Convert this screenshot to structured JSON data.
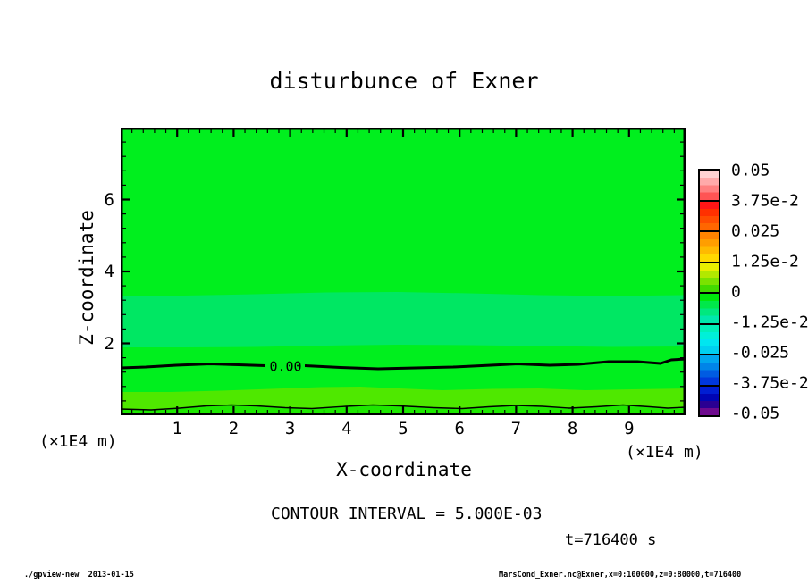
{
  "title": "disturbunce of Exner",
  "axes": {
    "x": {
      "label": "X-coordinate",
      "unit": "(×1E4 m)",
      "tick_labels": [
        "1",
        "2",
        "3",
        "4",
        "5",
        "6",
        "7",
        "8",
        "9"
      ],
      "tick_values": [
        1,
        2,
        3,
        4,
        5,
        6,
        7,
        8,
        9
      ],
      "range": [
        0,
        10
      ],
      "minor_step": 0.2
    },
    "y": {
      "label": "Z-coordinate",
      "unit": "(×1E4 m)",
      "tick_labels": [
        "2",
        "4",
        "6"
      ],
      "tick_values": [
        2,
        4,
        6
      ],
      "range": [
        0,
        8
      ],
      "minor_step": 0.4
    }
  },
  "plot": {
    "contour_label": "0.00",
    "band_colors": {
      "main_green": "#00ef1e",
      "seafoam_band": "#00e763",
      "yellow_green_band": "#4fe800",
      "bottom_strip": "#1ee800"
    },
    "frame_color": "#000000"
  },
  "colorbar": {
    "boundary_labels": [
      "0.05",
      "3.75e-2",
      "0.025",
      "1.25e-2",
      "0",
      "-1.25e-2",
      "-0.025",
      "-3.75e-2",
      "-0.05"
    ],
    "segments": [
      {
        "name": "pink",
        "colors": [
          "#ffd2d2",
          "#ffaaaa",
          "#ff8080",
          "#ff5454"
        ]
      },
      {
        "name": "red",
        "colors": [
          "#ff1616",
          "#ff3000",
          "#ff4c00",
          "#ff6600"
        ]
      },
      {
        "name": "orange",
        "colors": [
          "#ff8400",
          "#ff9e00",
          "#ffba00",
          "#ffd800"
        ]
      },
      {
        "name": "yellow-green",
        "colors": [
          "#e9ee00",
          "#b2e800",
          "#7ae200",
          "#42da00"
        ]
      },
      {
        "name": "green",
        "colors": [
          "#00e80c",
          "#00e84a",
          "#00e87e",
          "#00e8ac"
        ]
      },
      {
        "name": "cyan",
        "colors": [
          "#00f0b8",
          "#00f0d8",
          "#00e6f0",
          "#00d0f0"
        ]
      },
      {
        "name": "blue",
        "colors": [
          "#00a6ee",
          "#0084e8",
          "#005ce2",
          "#0038dc"
        ]
      },
      {
        "name": "navy-purple",
        "colors": [
          "#001ed2",
          "#0005b4",
          "#2a0092",
          "#6e0a8e"
        ]
      }
    ]
  },
  "annotations": {
    "contour_interval": "CONTOUR INTERVAL = 5.000E-03",
    "time": "t=716400 s"
  },
  "footer": {
    "left": "./gpview-new  2013-01-15",
    "right": "MarsCond_Exner.nc@Exner,x=0:100000,z=0:80000,t=716400"
  },
  "chart_data": {
    "type": "heatmap",
    "subtype": "filled-contour",
    "title": "disturbunce of Exner",
    "xlabel": "X-coordinate",
    "ylabel": "Z-coordinate",
    "x_unit": "×1E4 m",
    "y_unit": "×1E4 m",
    "xlim": [
      0,
      10
    ],
    "ylim": [
      0,
      8
    ],
    "x_ticks": [
      1,
      2,
      3,
      4,
      5,
      6,
      7,
      8,
      9
    ],
    "y_ticks": [
      2,
      4,
      6
    ],
    "color_scale_limits": [
      -0.05,
      0.05
    ],
    "color_scale_boundaries": [
      0.05,
      0.0375,
      0.025,
      0.0125,
      0,
      -0.0125,
      -0.025,
      -0.0375,
      -0.05
    ],
    "contour_interval": 0.005,
    "labeled_contours": [
      {
        "value": 0.0,
        "label": "0.00",
        "z_position_approx": 1.37
      },
      {
        "value": 0.005,
        "label": null,
        "z_position_approx": 0.2
      }
    ],
    "field_bands": [
      {
        "z_range": [
          3.33,
          8.0
        ],
        "value_range": [
          -0.003,
          0.0
        ],
        "color": "bright green"
      },
      {
        "z_range": [
          1.94,
          3.33
        ],
        "value_range": [
          -0.006,
          -0.003
        ],
        "color": "seafoam green"
      },
      {
        "z_range": [
          1.37,
          1.94
        ],
        "value_range": [
          -0.003,
          0.0
        ],
        "color": "bright green"
      },
      {
        "z_range": [
          0.7,
          1.37
        ],
        "value_range": [
          0.0,
          0.003
        ],
        "color": "bright green"
      },
      {
        "z_range": [
          0.2,
          0.7
        ],
        "value_range": [
          0.003,
          0.006
        ],
        "color": "yellow green"
      },
      {
        "z_range": [
          0.0,
          0.2
        ],
        "value_range": [
          0.0,
          0.003
        ],
        "color": "green"
      }
    ],
    "time": "t=716400 s",
    "legend_position": "right colorbar",
    "grid": false
  }
}
